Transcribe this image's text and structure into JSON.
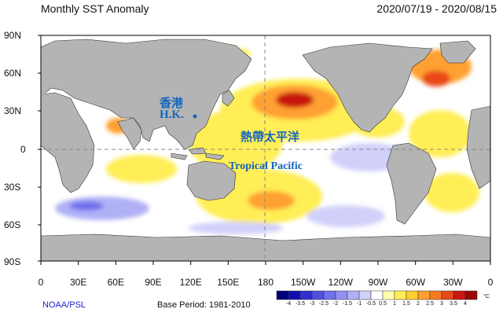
{
  "header": {
    "title": "Monthly SST Anomaly",
    "date_range": "2020/07/19 - 2020/08/15"
  },
  "axes": {
    "lat_labels": [
      "90N",
      "60N",
      "30N",
      "0",
      "30S",
      "60S",
      "90S"
    ],
    "lon_labels": [
      "0",
      "30E",
      "60E",
      "90E",
      "120E",
      "150E",
      "180",
      "150W",
      "120W",
      "90W",
      "60W",
      "30W",
      "0"
    ]
  },
  "annotations": {
    "hk_chinese": "香港",
    "hk_english": "H.K.",
    "pacific_chinese": "熱帶太平洋",
    "pacific_english": "Tropical Pacific"
  },
  "footer": {
    "credit": "NOAA/PSL",
    "base_period": "Base Period: 1981-2010"
  },
  "colorbar": {
    "unit": "°C",
    "ticks": [
      "-4",
      "-3.5",
      "-3",
      "-2.5",
      "-2",
      "-1.5",
      "-1",
      "-0.5",
      "0.5",
      "1",
      "1.5",
      "2",
      "2.5",
      "3",
      "3.5",
      "4"
    ],
    "colors": [
      "#00007a",
      "#1010b0",
      "#3030d0",
      "#5050e0",
      "#7070ea",
      "#9090f0",
      "#b0b0f6",
      "#d0d0fa",
      "#ffffff",
      "#ffffb0",
      "#ffee55",
      "#ffcc33",
      "#ffa030",
      "#f87a20",
      "#e84818",
      "#c81810",
      "#9a0a0a"
    ]
  },
  "colors": {
    "land": "#b4b4b4",
    "neutral_ocean": "#ffffff",
    "annotation": "#1565c0",
    "credit": "#1a1acc"
  }
}
